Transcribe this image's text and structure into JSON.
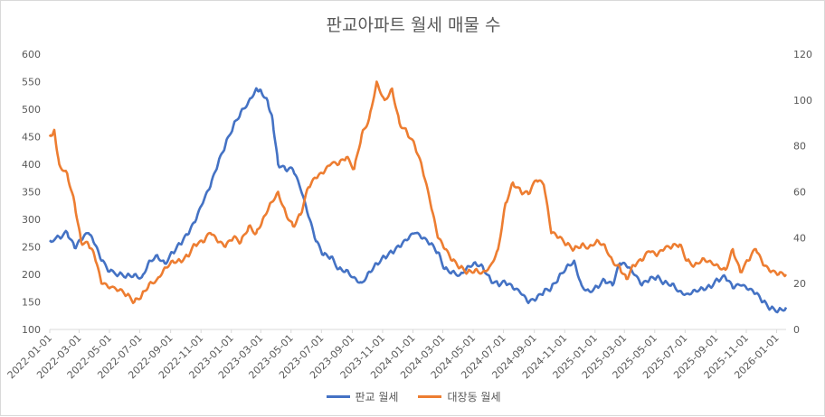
{
  "chart_data": {
    "type": "line",
    "title": "판교아파트 월세 매물 수",
    "y_left": {
      "min": 100,
      "max": 600,
      "step": 50
    },
    "y_right": {
      "min": 0,
      "max": 120,
      "step": 20
    },
    "x_ticks": [
      "2022-01-01",
      "2022-03-01",
      "2022-05-01",
      "2022-07-01",
      "2022-09-01",
      "2022-11-01",
      "2023-01-01",
      "2023-03-01",
      "2023-05-01",
      "2023-07-01",
      "2023-09-01",
      "2023-11-01",
      "2024-01-01",
      "2024-03-01",
      "2024-05-01",
      "2024-07-01",
      "2024-09-01",
      "2024-11-01",
      "2025-01-01",
      "2025-03-01",
      "2025-05-01",
      "2025-07-01",
      "2025-09-01",
      "2025-11-01",
      "2026-01-01"
    ],
    "x_range": [
      "2022-01-01",
      "2026-01-20"
    ],
    "grid": false,
    "legend_position": "bottom",
    "series": [
      {
        "name": "판교 월세",
        "axis": "left",
        "color": "#4472C4",
        "points": [
          [
            "2022-01-01",
            262
          ],
          [
            "2022-01-20",
            268
          ],
          [
            "2022-02-05",
            276
          ],
          [
            "2022-02-20",
            248
          ],
          [
            "2022-03-05",
            262
          ],
          [
            "2022-03-20",
            275
          ],
          [
            "2022-04-01",
            255
          ],
          [
            "2022-04-15",
            225
          ],
          [
            "2022-05-01",
            205
          ],
          [
            "2022-05-20",
            200
          ],
          [
            "2022-06-05",
            198
          ],
          [
            "2022-06-20",
            200
          ],
          [
            "2022-07-05",
            195
          ],
          [
            "2022-07-20",
            225
          ],
          [
            "2022-08-05",
            235
          ],
          [
            "2022-08-20",
            220
          ],
          [
            "2022-09-05",
            240
          ],
          [
            "2022-09-20",
            255
          ],
          [
            "2022-10-05",
            272
          ],
          [
            "2022-10-20",
            295
          ],
          [
            "2022-11-05",
            330
          ],
          [
            "2022-11-20",
            360
          ],
          [
            "2022-12-05",
            400
          ],
          [
            "2022-12-20",
            435
          ],
          [
            "2023-01-05",
            470
          ],
          [
            "2023-01-20",
            495
          ],
          [
            "2023-02-05",
            515
          ],
          [
            "2023-02-20",
            538
          ],
          [
            "2023-03-01",
            535
          ],
          [
            "2023-03-15",
            515
          ],
          [
            "2023-03-25",
            480
          ],
          [
            "2023-04-05",
            400
          ],
          [
            "2023-04-20",
            390
          ],
          [
            "2023-05-05",
            390
          ],
          [
            "2023-05-20",
            355
          ],
          [
            "2023-06-05",
            305
          ],
          [
            "2023-06-20",
            260
          ],
          [
            "2023-07-05",
            235
          ],
          [
            "2023-07-20",
            232
          ],
          [
            "2023-08-05",
            210
          ],
          [
            "2023-08-20",
            208
          ],
          [
            "2023-09-05",
            195
          ],
          [
            "2023-09-20",
            185
          ],
          [
            "2023-10-05",
            205
          ],
          [
            "2023-10-20",
            220
          ],
          [
            "2023-11-05",
            232
          ],
          [
            "2023-11-20",
            240
          ],
          [
            "2023-12-05",
            250
          ],
          [
            "2023-12-20",
            262
          ],
          [
            "2024-01-05",
            275
          ],
          [
            "2024-01-20",
            265
          ],
          [
            "2024-02-05",
            255
          ],
          [
            "2024-02-20",
            240
          ],
          [
            "2024-03-05",
            210
          ],
          [
            "2024-03-20",
            205
          ],
          [
            "2024-04-05",
            200
          ],
          [
            "2024-04-20",
            215
          ],
          [
            "2024-05-05",
            222
          ],
          [
            "2024-05-20",
            215
          ],
          [
            "2024-06-05",
            190
          ],
          [
            "2024-06-20",
            182
          ],
          [
            "2024-07-05",
            185
          ],
          [
            "2024-07-20",
            175
          ],
          [
            "2024-08-05",
            165
          ],
          [
            "2024-08-20",
            148
          ],
          [
            "2024-09-05",
            155
          ],
          [
            "2024-09-20",
            168
          ],
          [
            "2024-10-05",
            175
          ],
          [
            "2024-10-20",
            195
          ],
          [
            "2024-11-05",
            215
          ],
          [
            "2024-11-20",
            225
          ],
          [
            "2024-12-05",
            180
          ],
          [
            "2024-12-20",
            170
          ],
          [
            "2025-01-05",
            178
          ],
          [
            "2025-01-20",
            190
          ],
          [
            "2025-02-05",
            180
          ],
          [
            "2025-02-20",
            220
          ],
          [
            "2025-03-05",
            215
          ],
          [
            "2025-03-20",
            200
          ],
          [
            "2025-04-05",
            180
          ],
          [
            "2025-04-20",
            190
          ],
          [
            "2025-05-05",
            195
          ],
          [
            "2025-05-20",
            185
          ],
          [
            "2025-06-05",
            183
          ],
          [
            "2025-06-20",
            170
          ],
          [
            "2025-07-05",
            165
          ],
          [
            "2025-07-20",
            172
          ],
          [
            "2025-08-05",
            175
          ],
          [
            "2025-08-20",
            178
          ],
          [
            "2025-09-05",
            190
          ],
          [
            "2025-09-20",
            195
          ],
          [
            "2025-10-05",
            175
          ],
          [
            "2025-10-20",
            180
          ],
          [
            "2025-11-05",
            172
          ],
          [
            "2025-11-20",
            165
          ],
          [
            "2025-12-05",
            150
          ],
          [
            "2025-12-20",
            138
          ],
          [
            "2026-01-05",
            135
          ],
          [
            "2026-01-20",
            140
          ]
        ]
      },
      {
        "name": "대장동 월세",
        "axis": "right",
        "color": "#ED7D31",
        "points": [
          [
            "2022-01-01",
            84
          ],
          [
            "2022-01-10",
            87
          ],
          [
            "2022-01-20",
            72
          ],
          [
            "2022-02-05",
            68
          ],
          [
            "2022-02-20",
            55
          ],
          [
            "2022-03-05",
            38
          ],
          [
            "2022-03-20",
            37
          ],
          [
            "2022-04-01",
            32
          ],
          [
            "2022-04-15",
            20
          ],
          [
            "2022-05-01",
            18
          ],
          [
            "2022-05-20",
            17
          ],
          [
            "2022-06-05",
            15
          ],
          [
            "2022-06-20",
            12
          ],
          [
            "2022-07-05",
            15
          ],
          [
            "2022-07-20",
            20
          ],
          [
            "2022-08-05",
            22
          ],
          [
            "2022-08-20",
            27
          ],
          [
            "2022-09-05",
            30
          ],
          [
            "2022-09-20",
            30
          ],
          [
            "2022-10-05",
            32
          ],
          [
            "2022-10-20",
            37
          ],
          [
            "2022-11-05",
            38
          ],
          [
            "2022-11-20",
            42
          ],
          [
            "2022-12-05",
            38
          ],
          [
            "2022-12-20",
            36
          ],
          [
            "2023-01-05",
            40
          ],
          [
            "2023-01-20",
            38
          ],
          [
            "2023-02-05",
            45
          ],
          [
            "2023-02-20",
            42
          ],
          [
            "2023-03-05",
            48
          ],
          [
            "2023-03-20",
            55
          ],
          [
            "2023-04-05",
            60
          ],
          [
            "2023-04-20",
            51
          ],
          [
            "2023-05-05",
            45
          ],
          [
            "2023-05-20",
            50
          ],
          [
            "2023-06-05",
            62
          ],
          [
            "2023-06-20",
            66
          ],
          [
            "2023-07-05",
            68
          ],
          [
            "2023-07-20",
            72
          ],
          [
            "2023-08-05",
            72
          ],
          [
            "2023-08-20",
            75
          ],
          [
            "2023-09-05",
            70
          ],
          [
            "2023-09-20",
            85
          ],
          [
            "2023-10-05",
            92
          ],
          [
            "2023-10-20",
            108
          ],
          [
            "2023-11-05",
            100
          ],
          [
            "2023-11-20",
            105
          ],
          [
            "2023-12-05",
            90
          ],
          [
            "2023-12-20",
            86
          ],
          [
            "2024-01-05",
            80
          ],
          [
            "2024-01-20",
            70
          ],
          [
            "2024-02-05",
            55
          ],
          [
            "2024-02-20",
            40
          ],
          [
            "2024-03-05",
            35
          ],
          [
            "2024-03-20",
            30
          ],
          [
            "2024-04-05",
            27
          ],
          [
            "2024-04-20",
            25
          ],
          [
            "2024-05-05",
            26
          ],
          [
            "2024-05-20",
            25
          ],
          [
            "2024-06-05",
            28
          ],
          [
            "2024-06-20",
            35
          ],
          [
            "2024-07-05",
            55
          ],
          [
            "2024-07-20",
            64
          ],
          [
            "2024-08-05",
            60
          ],
          [
            "2024-08-20",
            59
          ],
          [
            "2024-09-05",
            65
          ],
          [
            "2024-09-20",
            63
          ],
          [
            "2024-10-05",
            42
          ],
          [
            "2024-10-20",
            40
          ],
          [
            "2024-11-05",
            37
          ],
          [
            "2024-11-20",
            35
          ],
          [
            "2024-12-05",
            37
          ],
          [
            "2024-12-20",
            36
          ],
          [
            "2025-01-05",
            39
          ],
          [
            "2025-01-20",
            37
          ],
          [
            "2025-02-05",
            30
          ],
          [
            "2025-02-20",
            27
          ],
          [
            "2025-03-05",
            22
          ],
          [
            "2025-03-20",
            28
          ],
          [
            "2025-04-05",
            30
          ],
          [
            "2025-04-20",
            34
          ],
          [
            "2025-05-05",
            32
          ],
          [
            "2025-05-20",
            35
          ],
          [
            "2025-06-05",
            36
          ],
          [
            "2025-06-20",
            37
          ],
          [
            "2025-07-05",
            30
          ],
          [
            "2025-07-20",
            28
          ],
          [
            "2025-08-05",
            31
          ],
          [
            "2025-08-20",
            30
          ],
          [
            "2025-09-05",
            28
          ],
          [
            "2025-09-20",
            26
          ],
          [
            "2025-10-05",
            35
          ],
          [
            "2025-10-20",
            25
          ],
          [
            "2025-11-05",
            30
          ],
          [
            "2025-11-20",
            35
          ],
          [
            "2025-12-05",
            28
          ],
          [
            "2025-12-20",
            25
          ],
          [
            "2026-01-05",
            24
          ],
          [
            "2026-01-20",
            24
          ]
        ]
      }
    ]
  }
}
